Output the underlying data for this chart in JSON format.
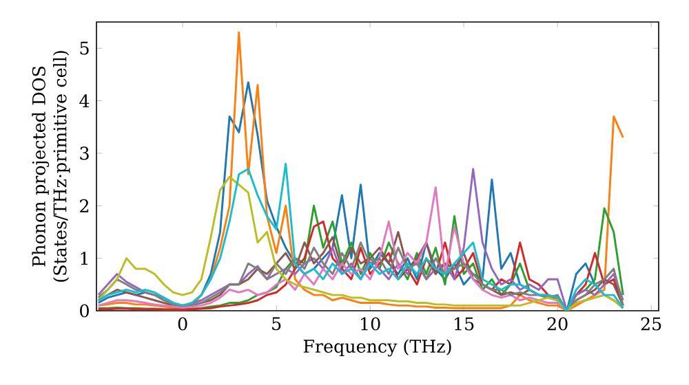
{
  "chart_data": {
    "type": "line",
    "xlabel": "Frequency (THz)",
    "ylabel": "Phonon projected DOS (States/THz·primitive cell)",
    "xlim": [
      -4.6,
      25.4
    ],
    "ylim": [
      0,
      5.5
    ],
    "xticks": [
      0,
      5,
      10,
      15,
      20,
      25
    ],
    "yticks": [
      0,
      1,
      2,
      3,
      4,
      5
    ],
    "line_style": "solid",
    "x": [
      -4.5,
      -4,
      -3.5,
      -3,
      -2.5,
      -2,
      -1.5,
      -1,
      -0.5,
      0,
      0.5,
      1,
      1.5,
      2,
      2.5,
      3,
      3.5,
      4,
      4.5,
      5,
      5.5,
      6,
      6.5,
      7,
      7.5,
      8,
      8.5,
      9,
      9.5,
      10,
      10.5,
      11,
      11.5,
      12,
      12.5,
      13,
      13.5,
      14,
      14.5,
      15,
      15.5,
      16,
      16.5,
      17,
      17.5,
      18,
      18.5,
      19,
      19.5,
      20,
      20.5,
      21,
      21.5,
      22,
      22.5,
      23,
      23.5
    ],
    "series": [
      {
        "color": "#1f77b4",
        "values": [
          0.15,
          0.25,
          0.3,
          0.35,
          0.3,
          0.35,
          0.3,
          0.2,
          0.12,
          0.1,
          0.15,
          0.3,
          0.7,
          1.5,
          3.7,
          3.4,
          4.35,
          3.35,
          2.1,
          1.6,
          1.2,
          0.9,
          0.7,
          0.8,
          1.0,
          1.2,
          2.2,
          1.0,
          2.4,
          0.8,
          1.1,
          0.9,
          0.7,
          1.0,
          0.6,
          1.3,
          0.8,
          0.6,
          0.9,
          0.5,
          0.7,
          0.6,
          2.5,
          0.8,
          1.1,
          0.5,
          0.4,
          0.3,
          0.3,
          0.2,
          0.0,
          0.7,
          0.9,
          0.5,
          0.3,
          0.2,
          0.05
        ]
      },
      {
        "color": "#ff7f0e",
        "values": [
          0.1,
          0.12,
          0.15,
          0.15,
          0.12,
          0.12,
          0.1,
          0.08,
          0.06,
          0.05,
          0.1,
          0.3,
          0.6,
          1.2,
          2.0,
          5.3,
          2.6,
          4.3,
          1.8,
          1.1,
          2.0,
          0.6,
          0.4,
          0.3,
          0.3,
          0.2,
          0.25,
          0.2,
          0.15,
          0.15,
          0.15,
          0.12,
          0.1,
          0.1,
          0.08,
          0.08,
          0.06,
          0.06,
          0.05,
          0.05,
          0.05,
          0.05,
          0.05,
          0.05,
          0.1,
          0.3,
          0.2,
          0.15,
          0.1,
          0.1,
          0.0,
          0.1,
          0.2,
          0.3,
          0.4,
          3.7,
          3.3
        ]
      },
      {
        "color": "#2ca02c",
        "values": [
          0.05,
          0.05,
          0.06,
          0.05,
          0.05,
          0.04,
          0.04,
          0.03,
          0.03,
          0.03,
          0.04,
          0.05,
          0.08,
          0.1,
          0.15,
          0.15,
          0.2,
          0.3,
          0.35,
          0.45,
          0.8,
          1.0,
          0.9,
          2.0,
          1.2,
          1.7,
          0.9,
          1.3,
          0.7,
          1.1,
          0.8,
          1.3,
          0.9,
          0.6,
          1.1,
          0.7,
          1.2,
          0.5,
          1.8,
          0.7,
          0.9,
          0.4,
          0.6,
          0.3,
          0.5,
          0.9,
          0.4,
          0.3,
          0.25,
          0.2,
          0.0,
          0.3,
          0.4,
          0.6,
          1.95,
          1.5,
          0.3
        ]
      },
      {
        "color": "#d62728",
        "values": [
          0.03,
          0.03,
          0.04,
          0.04,
          0.03,
          0.03,
          0.03,
          0.02,
          0.02,
          0.02,
          0.03,
          0.04,
          0.05,
          0.08,
          0.1,
          0.12,
          0.15,
          0.2,
          0.3,
          0.35,
          0.5,
          0.8,
          1.0,
          1.6,
          1.7,
          1.0,
          0.8,
          0.6,
          1.2,
          0.7,
          0.9,
          1.1,
          0.6,
          0.8,
          0.5,
          1.0,
          0.7,
          1.3,
          0.6,
          0.8,
          1.1,
          0.5,
          0.4,
          0.6,
          0.5,
          1.3,
          0.6,
          0.5,
          0.3,
          0.2,
          0.0,
          0.3,
          0.5,
          1.1,
          0.5,
          0.6,
          0.1
        ]
      },
      {
        "color": "#9467bd",
        "values": [
          0.3,
          0.5,
          0.7,
          0.55,
          0.45,
          0.35,
          0.3,
          0.25,
          0.15,
          0.1,
          0.15,
          0.2,
          0.3,
          0.4,
          0.5,
          0.5,
          0.7,
          0.85,
          0.6,
          0.7,
          0.8,
          0.7,
          0.9,
          1.0,
          0.8,
          1.2,
          0.7,
          0.9,
          0.6,
          1.0,
          0.8,
          0.6,
          0.9,
          0.7,
          1.0,
          0.6,
          0.8,
          0.9,
          0.6,
          1.2,
          2.7,
          1.3,
          0.8,
          0.5,
          0.6,
          0.4,
          0.5,
          0.4,
          0.6,
          0.6,
          0.0,
          0.3,
          0.4,
          0.3,
          0.5,
          0.7,
          0.2
        ]
      },
      {
        "color": "#8c564b",
        "values": [
          0.2,
          0.3,
          0.4,
          0.35,
          0.3,
          0.25,
          0.2,
          0.15,
          0.1,
          0.08,
          0.1,
          0.15,
          0.2,
          0.3,
          0.5,
          0.5,
          0.6,
          0.8,
          0.7,
          0.9,
          1.1,
          0.8,
          1.3,
          0.9,
          1.1,
          1.4,
          0.8,
          1.2,
          0.9,
          1.0,
          1.2,
          0.9,
          1.5,
          0.8,
          1.0,
          1.3,
          0.7,
          0.9,
          0.8,
          1.1,
          0.6,
          0.5,
          0.4,
          0.3,
          0.35,
          0.3,
          0.4,
          0.3,
          0.3,
          0.25,
          0.0,
          0.2,
          0.3,
          0.4,
          0.6,
          0.5,
          0.1
        ]
      },
      {
        "color": "#e377c2",
        "values": [
          0.1,
          0.15,
          0.2,
          0.2,
          0.18,
          0.15,
          0.12,
          0.1,
          0.08,
          0.06,
          0.08,
          0.1,
          0.15,
          0.25,
          0.4,
          0.35,
          0.4,
          0.3,
          0.35,
          0.5,
          0.6,
          0.4,
          0.7,
          0.5,
          0.8,
          0.6,
          0.9,
          0.7,
          0.8,
          0.6,
          1.0,
          1.7,
          0.8,
          1.1,
          0.9,
          1.3,
          2.35,
          0.7,
          1.6,
          0.9,
          0.6,
          0.4,
          0.3,
          0.25,
          0.3,
          0.2,
          0.25,
          0.2,
          0.15,
          0.15,
          0.0,
          0.15,
          0.2,
          0.25,
          0.3,
          0.2,
          0.05
        ]
      },
      {
        "color": "#7f7f7f",
        "values": [
          0.25,
          0.4,
          0.6,
          0.5,
          0.4,
          0.35,
          0.3,
          0.2,
          0.12,
          0.1,
          0.12,
          0.15,
          0.25,
          0.35,
          0.5,
          0.5,
          0.9,
          0.8,
          0.6,
          0.9,
          0.7,
          1.0,
          0.8,
          1.2,
          0.9,
          0.7,
          1.1,
          0.8,
          1.3,
          0.9,
          1.0,
          0.7,
          1.2,
          0.8,
          0.9,
          0.6,
          1.0,
          0.7,
          0.8,
          0.9,
          0.7,
          0.5,
          0.4,
          0.4,
          0.3,
          0.35,
          0.3,
          0.3,
          0.25,
          0.3,
          0.0,
          0.2,
          0.3,
          0.5,
          0.6,
          0.8,
          0.1
        ]
      },
      {
        "color": "#bcbd22",
        "values": [
          0.2,
          0.4,
          0.6,
          1.0,
          0.8,
          0.8,
          0.7,
          0.5,
          0.35,
          0.3,
          0.35,
          0.6,
          1.4,
          2.3,
          2.55,
          2.4,
          2.25,
          1.3,
          1.5,
          0.8,
          0.6,
          0.5,
          0.45,
          0.4,
          0.35,
          0.3,
          0.3,
          0.25,
          0.25,
          0.2,
          0.2,
          0.2,
          0.18,
          0.18,
          0.15,
          0.15,
          0.12,
          0.12,
          0.1,
          0.1,
          0.1,
          0.1,
          0.1,
          0.1,
          0.1,
          0.1,
          0.15,
          0.2,
          0.25,
          0.2,
          0.0,
          0.15,
          0.2,
          0.25,
          0.3,
          0.2,
          0.05
        ]
      },
      {
        "color": "#17becf",
        "values": [
          0.2,
          0.3,
          0.35,
          0.4,
          0.35,
          0.4,
          0.35,
          0.25,
          0.15,
          0.1,
          0.15,
          0.3,
          0.6,
          1.0,
          1.7,
          2.6,
          2.7,
          2.2,
          1.8,
          1.55,
          2.8,
          0.9,
          0.7,
          0.8,
          0.6,
          0.9,
          0.7,
          0.8,
          0.6,
          0.9,
          0.7,
          0.8,
          0.6,
          0.9,
          0.7,
          1.0,
          0.8,
          0.7,
          0.9,
          1.1,
          1.3,
          0.6,
          0.5,
          0.4,
          0.5,
          0.5,
          0.4,
          0.3,
          0.3,
          0.25,
          0.0,
          0.4,
          0.6,
          0.5,
          0.3,
          0.3,
          0.05
        ]
      }
    ]
  }
}
